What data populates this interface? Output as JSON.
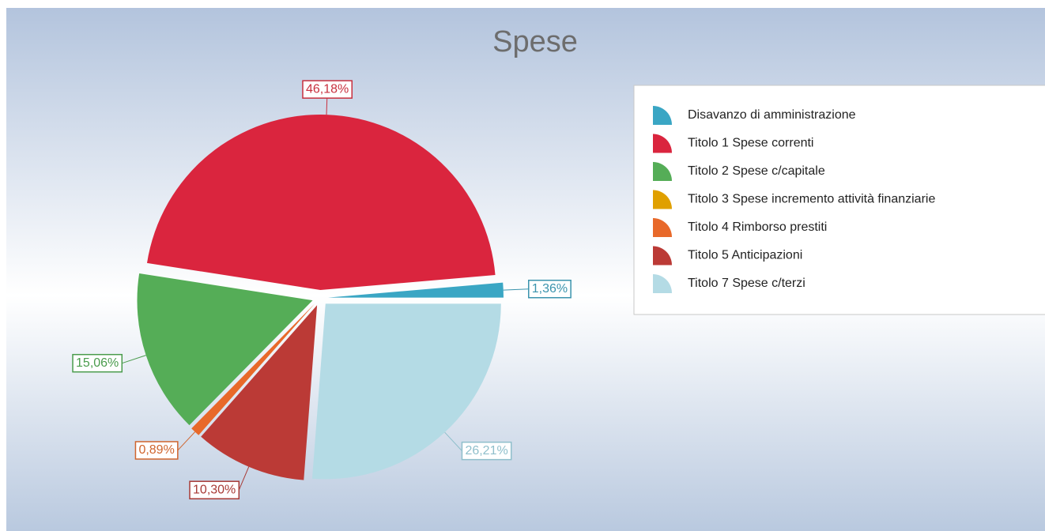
{
  "chart_data": {
    "type": "pie",
    "title": "Spese",
    "categories": [
      "Disavanzo di amministrazione",
      "Titolo 1 Spese correnti",
      "Titolo 2 Spese c/capitale",
      "Titolo 3 Spese incremento attività finanziarie",
      "Titolo 4 Rimborso prestiti",
      "Titolo 5 Anticipazioni",
      "Titolo 7 Spese c/terzi"
    ],
    "values": [
      1.36,
      46.18,
      15.06,
      0,
      0.89,
      10.3,
      26.21
    ],
    "value_labels": [
      "1,36%",
      "46,18%",
      "15,06%",
      null,
      "0,89%",
      "10,30%",
      "26,21%"
    ],
    "colors": [
      "#3aa6c4",
      "#da253e",
      "#55ad57",
      "#e0a000",
      "#e8692a",
      "#bb3a36",
      "#b4dbe5"
    ],
    "label_colors": [
      "#3a93ad",
      "#c8303f",
      "#4a9c4c",
      "#c99000",
      "#d0652e",
      "#a83a36",
      "#8fbfcb"
    ],
    "legend": "right"
  }
}
